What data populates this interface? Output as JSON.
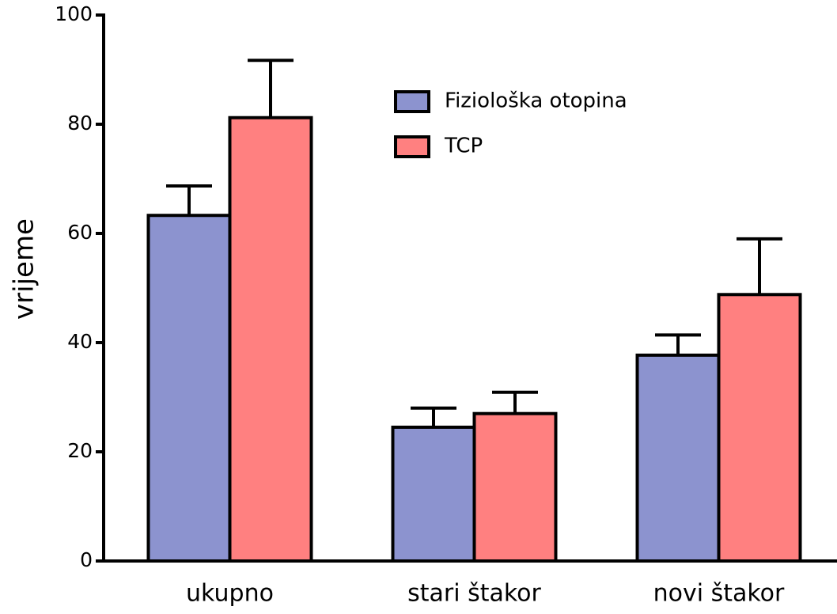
{
  "chart_data": {
    "type": "bar",
    "ylabel": "vrijeme",
    "categories": [
      "ukupno",
      "stari štakor",
      "novi štakor"
    ],
    "series": [
      {
        "name": "Fiziološka otopina",
        "color": "#8c93cf",
        "values": [
          63.3,
          24.5,
          37.7
        ],
        "errors": [
          5.4,
          3.5,
          3.7
        ]
      },
      {
        "name": "TCP",
        "color": "#ff8080",
        "values": [
          81.2,
          27,
          48.8
        ],
        "errors": [
          10.5,
          3.9,
          10.2
        ]
      }
    ],
    "ylim": [
      0,
      100
    ],
    "yticks": [
      0,
      20,
      40,
      60,
      80,
      100
    ],
    "grid": false
  }
}
